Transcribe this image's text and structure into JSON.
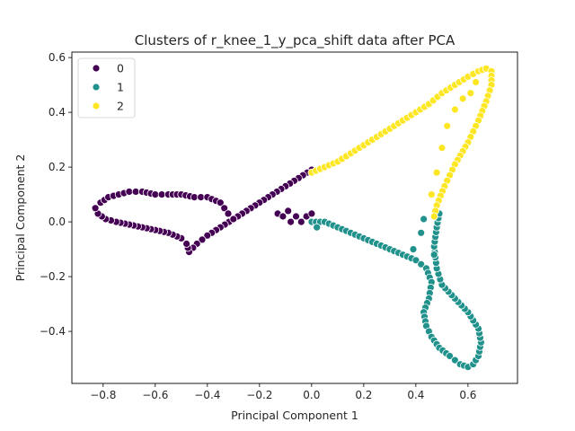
{
  "chart_data": {
    "type": "scatter",
    "title": "Clusters of r_knee_1_y_pca_shift data after PCA",
    "xlabel": "Principal Component 1",
    "ylabel": "Principal Component 2",
    "xlim": [
      -0.92,
      0.79
    ],
    "ylim": [
      -0.59,
      0.62
    ],
    "xticks": [
      -0.8,
      -0.6,
      -0.4,
      -0.2,
      0.0,
      0.2,
      0.4,
      0.6
    ],
    "xtick_labels": [
      "−0.8",
      "−0.6",
      "−0.4",
      "−0.2",
      "0.0",
      "0.2",
      "0.4",
      "0.6"
    ],
    "yticks": [
      -0.4,
      -0.2,
      0.0,
      0.2,
      0.4,
      0.6
    ],
    "ytick_labels": [
      "−0.4",
      "−0.2",
      "0.0",
      "0.2",
      "0.4",
      "0.6"
    ],
    "grid": false,
    "legend_position": "upper-left",
    "marker_colors": [
      "#440154",
      "#21918c",
      "#fde725"
    ],
    "series": [
      {
        "name": "0",
        "color": "#440154",
        "path": [
          [
            0.0,
            0.19
          ],
          [
            -0.05,
            0.16
          ],
          [
            -0.1,
            0.13
          ],
          [
            -0.15,
            0.1
          ],
          [
            -0.2,
            0.07
          ],
          [
            -0.25,
            0.04
          ],
          [
            -0.3,
            0.01
          ],
          [
            -0.35,
            -0.02
          ],
          [
            -0.4,
            -0.05
          ],
          [
            -0.44,
            -0.08
          ],
          [
            -0.47,
            -0.11
          ],
          [
            -0.48,
            -0.08
          ],
          [
            -0.5,
            -0.06
          ],
          [
            -0.55,
            -0.04
          ],
          [
            -0.6,
            -0.03
          ],
          [
            -0.65,
            -0.02
          ],
          [
            -0.7,
            -0.01
          ],
          [
            -0.75,
            0.0
          ],
          [
            -0.79,
            0.01
          ],
          [
            -0.82,
            0.03
          ],
          [
            -0.83,
            0.05
          ],
          [
            -0.81,
            0.07
          ],
          [
            -0.78,
            0.09
          ],
          [
            -0.74,
            0.1
          ],
          [
            -0.7,
            0.11
          ],
          [
            -0.65,
            0.11
          ],
          [
            -0.6,
            0.1
          ],
          [
            -0.55,
            0.1
          ],
          [
            -0.5,
            0.1
          ],
          [
            -0.45,
            0.09
          ],
          [
            -0.4,
            0.09
          ],
          [
            -0.35,
            0.07
          ],
          [
            -0.32,
            0.03
          ],
          [
            -0.3,
            0.01
          ]
        ],
        "extra": [
          [
            -0.13,
            0.03
          ],
          [
            -0.11,
            0.02
          ],
          [
            -0.09,
            0.04
          ],
          [
            -0.06,
            0.02
          ],
          [
            -0.04,
            0.0
          ],
          [
            -0.02,
            0.02
          ],
          [
            0.0,
            0.03
          ],
          [
            -0.08,
            0.0
          ]
        ]
      },
      {
        "name": "1",
        "color": "#21918c",
        "path": [
          [
            0.0,
            0.0
          ],
          [
            0.05,
            0.0
          ],
          [
            0.1,
            -0.02
          ],
          [
            0.15,
            -0.04
          ],
          [
            0.2,
            -0.06
          ],
          [
            0.25,
            -0.08
          ],
          [
            0.3,
            -0.1
          ],
          [
            0.35,
            -0.12
          ],
          [
            0.4,
            -0.14
          ],
          [
            0.44,
            -0.17
          ],
          [
            0.46,
            -0.22
          ],
          [
            0.45,
            -0.28
          ],
          [
            0.43,
            -0.33
          ],
          [
            0.44,
            -0.38
          ],
          [
            0.46,
            -0.42
          ],
          [
            0.49,
            -0.46
          ],
          [
            0.53,
            -0.49
          ],
          [
            0.57,
            -0.52
          ],
          [
            0.6,
            -0.53
          ],
          [
            0.62,
            -0.52
          ],
          [
            0.64,
            -0.49
          ],
          [
            0.65,
            -0.44
          ],
          [
            0.64,
            -0.39
          ],
          [
            0.6,
            -0.33
          ],
          [
            0.55,
            -0.28
          ],
          [
            0.5,
            -0.23
          ],
          [
            0.48,
            -0.17
          ],
          [
            0.47,
            -0.09
          ],
          [
            0.48,
            -0.02
          ],
          [
            0.49,
            0.03
          ]
        ],
        "extra": [
          [
            0.02,
            -0.02
          ],
          [
            0.39,
            -0.1
          ],
          [
            0.42,
            -0.04
          ],
          [
            0.43,
            0.01
          ],
          [
            0.47,
            -0.12
          ]
        ]
      },
      {
        "name": "2",
        "color": "#fde725",
        "path": [
          [
            0.0,
            0.18
          ],
          [
            0.05,
            0.2
          ],
          [
            0.1,
            0.22
          ],
          [
            0.15,
            0.25
          ],
          [
            0.2,
            0.28
          ],
          [
            0.25,
            0.31
          ],
          [
            0.3,
            0.34
          ],
          [
            0.35,
            0.37
          ],
          [
            0.4,
            0.4
          ],
          [
            0.45,
            0.43
          ],
          [
            0.5,
            0.47
          ],
          [
            0.55,
            0.5
          ],
          [
            0.6,
            0.53
          ],
          [
            0.64,
            0.55
          ],
          [
            0.67,
            0.56
          ],
          [
            0.69,
            0.55
          ],
          [
            0.69,
            0.5
          ],
          [
            0.67,
            0.44
          ],
          [
            0.64,
            0.37
          ],
          [
            0.6,
            0.29
          ],
          [
            0.55,
            0.21
          ],
          [
            0.51,
            0.13
          ],
          [
            0.48,
            0.06
          ],
          [
            0.47,
            0.02
          ]
        ],
        "extra": [
          [
            0.52,
            0.35
          ],
          [
            0.55,
            0.41
          ],
          [
            0.58,
            0.45
          ],
          [
            0.61,
            0.47
          ],
          [
            0.5,
            0.27
          ],
          [
            0.48,
            0.18
          ],
          [
            0.46,
            0.1
          ],
          [
            0.63,
            0.51
          ]
        ]
      }
    ]
  }
}
